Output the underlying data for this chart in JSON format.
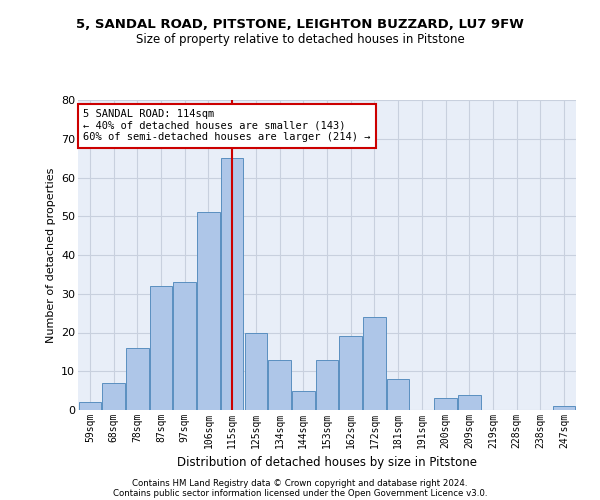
{
  "title1": "5, SANDAL ROAD, PITSTONE, LEIGHTON BUZZARD, LU7 9FW",
  "title2": "Size of property relative to detached houses in Pitstone",
  "xlabel": "Distribution of detached houses by size in Pitstone",
  "ylabel": "Number of detached properties",
  "bar_labels": [
    "59sqm",
    "68sqm",
    "78sqm",
    "87sqm",
    "97sqm",
    "106sqm",
    "115sqm",
    "125sqm",
    "134sqm",
    "144sqm",
    "153sqm",
    "162sqm",
    "172sqm",
    "181sqm",
    "191sqm",
    "200sqm",
    "209sqm",
    "219sqm",
    "228sqm",
    "238sqm",
    "247sqm"
  ],
  "bar_values": [
    2,
    7,
    16,
    32,
    33,
    51,
    65,
    20,
    13,
    5,
    13,
    19,
    24,
    8,
    0,
    3,
    4,
    0,
    0,
    0,
    1
  ],
  "bar_color": "#aec6e8",
  "bar_edge_color": "#5a8fc0",
  "vline_x_index": 6,
  "vline_color": "#cc0000",
  "annotation_text": "5 SANDAL ROAD: 114sqm\n← 40% of detached houses are smaller (143)\n60% of semi-detached houses are larger (214) →",
  "annotation_box_color": "#ffffff",
  "annotation_box_edge_color": "#cc0000",
  "ylim": [
    0,
    80
  ],
  "yticks": [
    0,
    10,
    20,
    30,
    40,
    50,
    60,
    70,
    80
  ],
  "grid_color": "#c8d0de",
  "background_color": "#e8eef8",
  "footer1": "Contains HM Land Registry data © Crown copyright and database right 2024.",
  "footer2": "Contains public sector information licensed under the Open Government Licence v3.0."
}
